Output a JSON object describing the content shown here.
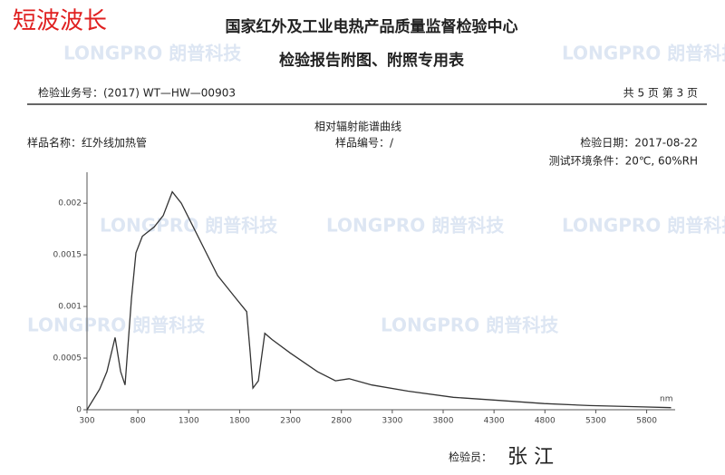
{
  "header": {
    "label": "短波波长",
    "title": "国家红外及工业电热产品质量监督检验中心",
    "subtitle": "检验报告附图、附照专用表"
  },
  "meta": {
    "business_no": "检验业务号：(2017) WT—HW—00903",
    "page": "共 5 页 第 3 页",
    "sample_name": "样品名称：红外线加热管",
    "sample_no": "样品编号：/",
    "date": "检验日期：2017-08-22",
    "environment": "测试环境条件：20℃, 60%RH"
  },
  "watermark": "LONGPRO 朗普科技",
  "chart": {
    "type": "line",
    "title": "相对辐射能谱曲线",
    "x_unit": "nm",
    "color": "#333333",
    "x": [
      300,
      425,
      496,
      576,
      630,
      674,
      737,
      781,
      844,
      960,
      1049,
      1138,
      1227,
      1405,
      1583,
      1762,
      1869,
      1904,
      1931,
      1984,
      2047,
      2118,
      2296,
      2564,
      2742,
      2876,
      3099,
      3455,
      3901,
      4346,
      4792,
      5237,
      5683,
      6040
    ],
    "values": [
      0,
      0.0002,
      0.00037,
      0.0007,
      0.00037,
      0.00024,
      0.00108,
      0.00152,
      0.00168,
      0.00177,
      0.00188,
      0.00211,
      0.002,
      0.00165,
      0.0013,
      0.00108,
      0.00095,
      0.00055,
      0.00021,
      0.00028,
      0.00074,
      0.00068,
      0.00055,
      0.00037,
      0.00028,
      0.0003,
      0.00024,
      0.00018,
      0.00012,
      9e-05,
      6e-05,
      4e-05,
      3e-05,
      2e-05
    ],
    "xlim": [
      300,
      6080
    ],
    "ylim": [
      0,
      0.0023
    ],
    "xticks": [
      300,
      800,
      1300,
      1800,
      2300,
      2800,
      3300,
      3800,
      4300,
      4800,
      5300,
      5800
    ],
    "yticks": [
      0,
      0.0005,
      0.001,
      0.0015,
      0.002
    ]
  },
  "footer": {
    "inspector": "检验员：",
    "signature": "张 江"
  }
}
